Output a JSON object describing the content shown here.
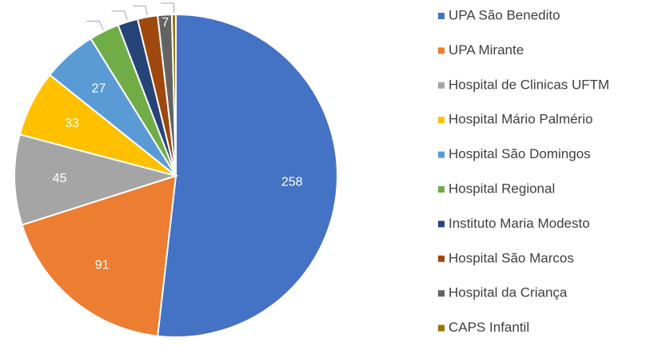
{
  "chart_data": {
    "type": "pie",
    "categories": [
      "UPA São Benedito",
      "UPA Mirante",
      "Hospital de Clinicas UFTM",
      "Hospital Mário Palmério",
      "Hospital São Domingos",
      "Hospital Regional",
      "Instituto Maria Modesto",
      "Hospital São Marcos",
      "Hospital da Criança",
      "CAPS Infantil"
    ],
    "values": [
      258,
      91,
      45,
      33,
      27,
      15,
      10,
      10,
      7,
      2
    ],
    "value_labels": [
      "258",
      "91",
      "45",
      "33",
      "27",
      null,
      null,
      null,
      "7",
      null
    ],
    "colors": [
      "#4472c4",
      "#ed7d31",
      "#a5a5a5",
      "#ffc000",
      "#5b9bd5",
      "#70ad47",
      "#264478",
      "#9e480e",
      "#636363",
      "#997300"
    ],
    "legend": "right"
  }
}
